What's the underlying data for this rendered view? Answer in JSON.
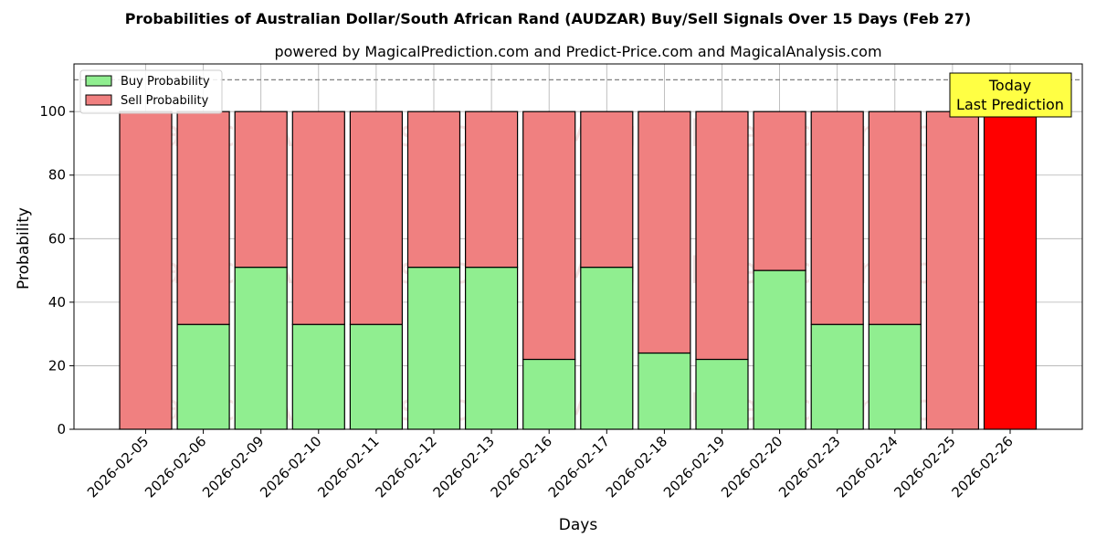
{
  "chart_data": {
    "type": "bar",
    "stacked": true,
    "title": "Probabilities of Australian Dollar/South African Rand (AUDZAR) Buy/Sell Signals Over 15 Days (Feb 27)",
    "subtitle": "powered by MagicalPrediction.com and Predict-Price.com and MagicalAnalysis.com",
    "xlabel": "Days",
    "ylabel": "Probability",
    "ylim": [
      0,
      115
    ],
    "yticks": [
      0,
      20,
      40,
      60,
      80,
      100
    ],
    "reference_line": 110,
    "grid": true,
    "legend_position": "top-left",
    "categories": [
      "2026-02-05",
      "2026-02-06",
      "2026-02-09",
      "2026-02-10",
      "2026-02-11",
      "2026-02-12",
      "2026-02-13",
      "2026-02-16",
      "2026-02-17",
      "2026-02-18",
      "2026-02-19",
      "2026-02-20",
      "2026-02-23",
      "2026-02-24",
      "2026-02-25",
      "2026-02-26"
    ],
    "series": [
      {
        "name": "Buy Probability",
        "color": "#90ee90",
        "values": [
          0,
          33,
          51,
          33,
          33,
          51,
          51,
          22,
          51,
          24,
          22,
          50,
          33,
          33,
          0,
          0
        ]
      },
      {
        "name": "Sell Probability",
        "color": "#f08080",
        "values": [
          100,
          67,
          49,
          67,
          67,
          49,
          49,
          78,
          49,
          76,
          78,
          50,
          67,
          67,
          100,
          100
        ]
      }
    ],
    "highlight": {
      "index": 15,
      "color": "#ff0000"
    },
    "annotation": {
      "lines": [
        "Today",
        "Last Prediction"
      ],
      "color": "#ffff44"
    },
    "watermarks": [
      "MagicalAnalysis.com",
      "MagicalPrediction.com"
    ]
  }
}
